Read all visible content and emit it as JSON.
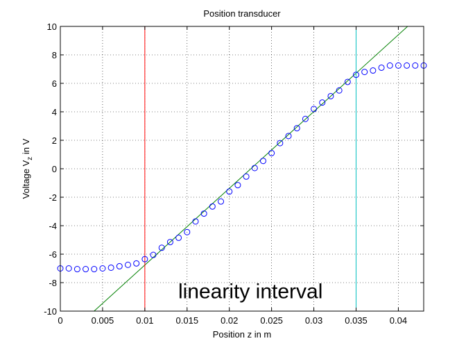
{
  "chart_data": {
    "type": "scatter",
    "title": "Position transducer",
    "xlabel": "Position z in m",
    "ylabel_main": "Voltage V",
    "ylabel_sub": "z",
    "ylabel_rest": " in V",
    "xlim": [
      0,
      0.043
    ],
    "ylim": [
      -10,
      10
    ],
    "x_ticks": [
      0,
      0.005,
      0.01,
      0.015,
      0.02,
      0.025,
      0.03,
      0.035,
      0.04
    ],
    "x_tick_labels": [
      "0",
      "0.005",
      "0.01",
      "0.015",
      "0.02",
      "0.025",
      "0.03",
      "0.035",
      "0.04"
    ],
    "y_ticks": [
      -10,
      -8,
      -6,
      -4,
      -2,
      0,
      2,
      4,
      6,
      8,
      10
    ],
    "y_tick_labels": [
      "-10",
      "-8",
      "-6",
      "-4",
      "-2",
      "0",
      "2",
      "4",
      "6",
      "8",
      "10"
    ],
    "grid": true,
    "grid_style": "dotted",
    "series": [
      {
        "kind": "markers",
        "marker": "circle-open",
        "color": "#0000ff",
        "x": [
          0,
          0.001,
          0.002,
          0.003,
          0.004,
          0.005,
          0.006,
          0.007,
          0.008,
          0.009,
          0.01,
          0.011,
          0.012,
          0.013,
          0.014,
          0.015,
          0.016,
          0.017,
          0.018,
          0.019,
          0.02,
          0.021,
          0.022,
          0.023,
          0.024,
          0.025,
          0.026,
          0.027,
          0.028,
          0.029,
          0.03,
          0.031,
          0.032,
          0.033,
          0.034,
          0.035,
          0.036,
          0.037,
          0.038,
          0.039,
          0.04,
          0.041,
          0.042,
          0.043
        ],
        "y": [
          -7.0,
          -7.0,
          -7.05,
          -7.05,
          -7.05,
          -7.0,
          -6.95,
          -6.85,
          -6.75,
          -6.65,
          -6.35,
          -6.05,
          -5.55,
          -5.15,
          -4.85,
          -4.45,
          -3.7,
          -3.15,
          -2.65,
          -2.3,
          -1.6,
          -1.15,
          -0.55,
          0.05,
          0.55,
          1.1,
          1.8,
          2.3,
          2.85,
          3.5,
          4.2,
          4.65,
          5.1,
          5.5,
          6.1,
          6.6,
          6.8,
          6.9,
          7.1,
          7.25,
          7.25,
          7.25,
          7.25,
          7.25
        ]
      },
      {
        "kind": "line",
        "color": "#008000",
        "x": [
          0.004,
          0.0411
        ],
        "y": [
          -10,
          10
        ]
      },
      {
        "kind": "vline",
        "color": "#ff0000",
        "x": 0.01
      },
      {
        "kind": "vline",
        "color": "#00bfbf",
        "x": 0.035
      }
    ],
    "annotations": [
      {
        "text": "linearity interval",
        "x": 0.0225,
        "y": -9.1
      }
    ]
  }
}
